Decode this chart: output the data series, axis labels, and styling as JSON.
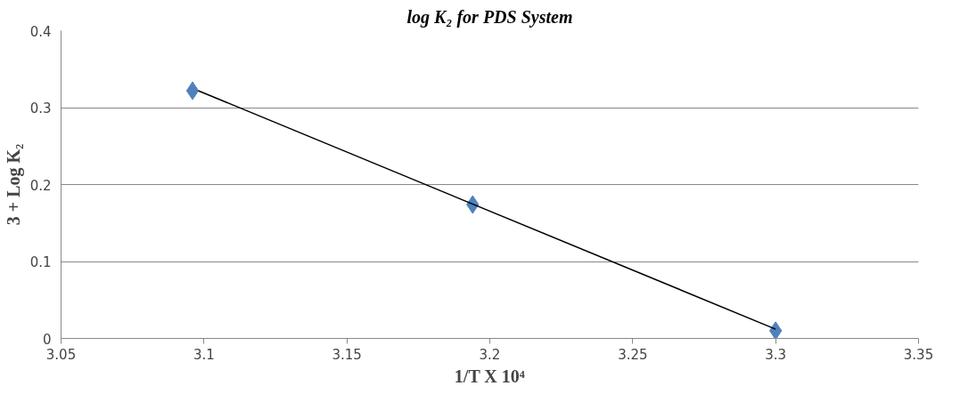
{
  "chart_data": {
    "type": "scatter",
    "title": "log K₂ for PDS System",
    "xlabel": "1/T X 10⁴",
    "ylabel": "3 + Log K₂",
    "x": [
      3.096,
      3.194,
      3.3
    ],
    "series": [
      {
        "color": "#4f81bd",
        "values": [
          0.322,
          0.174,
          0.01
        ],
        "marker": "diamond"
      },
      {
        "type": "line",
        "color": "#000000",
        "x": [
          3.098,
          3.3
        ],
        "values": [
          0.322,
          0.012
        ],
        "marker": "none",
        "line_style": "solid"
      }
    ],
    "xlim": [
      3.05,
      3.35
    ],
    "xticks": [
      3.05,
      3.1,
      3.15,
      3.2,
      3.25,
      3.3,
      3.35
    ],
    "ylim": [
      0,
      0.4
    ],
    "yticks": [
      0,
      0.1,
      0.2,
      0.3,
      0.4
    ],
    "grid": "y"
  }
}
